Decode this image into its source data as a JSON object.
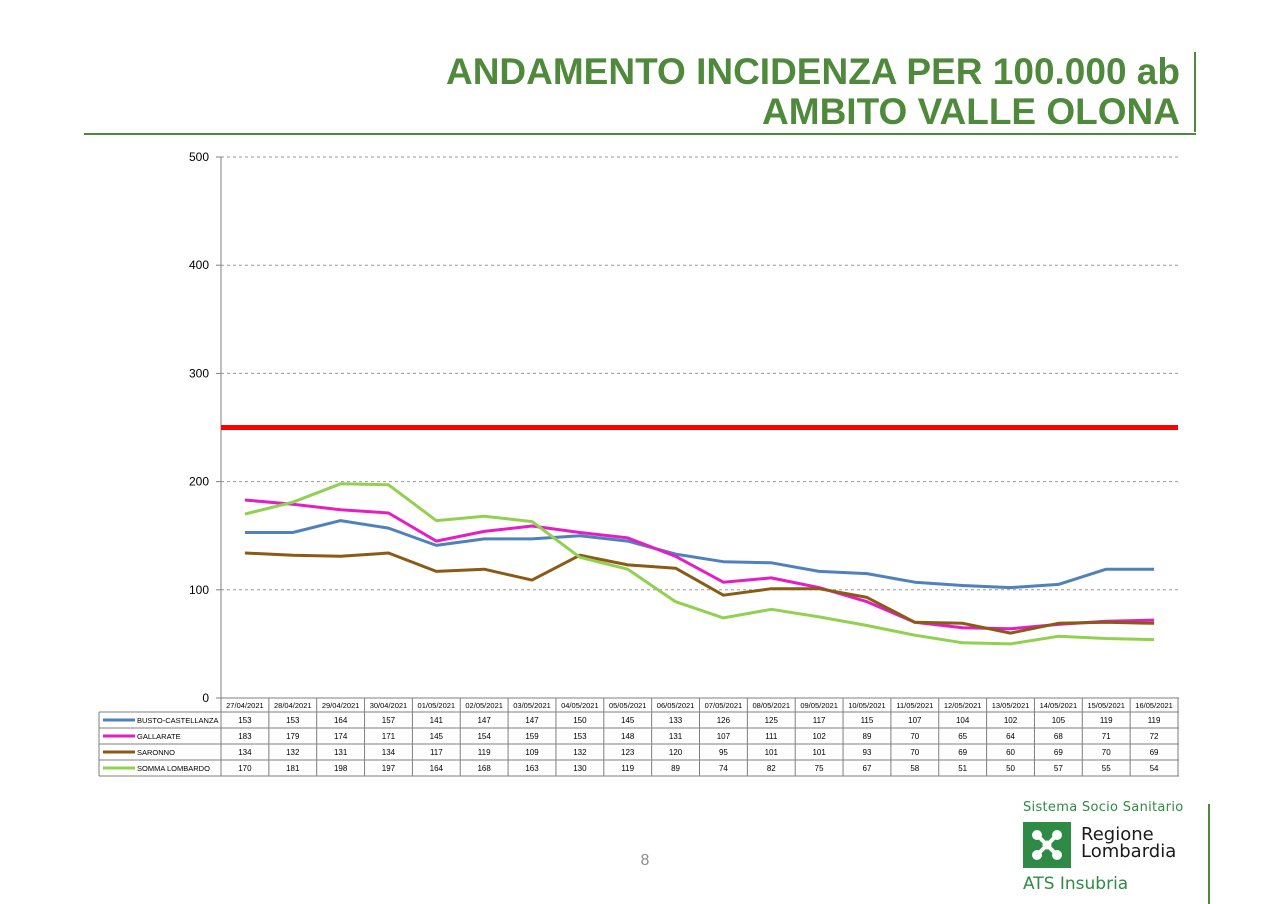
{
  "title": {
    "line1": "ANDAMENTO INCIDENZA PER 100.000 ab",
    "line2": "AMBITO VALLE OLONA"
  },
  "page_number": "8",
  "logo": {
    "system": "Sistema Socio Sanitario",
    "name_line1": "Regione",
    "name_line2": "Lombardia",
    "sub": "ATS Insubria"
  },
  "colors": {
    "title": "#4f8a3c",
    "threshold": "#ff0000",
    "busto": "#4f81bd",
    "gallarate": "#e31fc4",
    "saronno": "#8b5a14",
    "somma": "#92d050"
  },
  "chart_data": {
    "type": "line",
    "title": "ANDAMENTO INCIDENZA PER 100.000 ab AMBITO VALLE OLONA",
    "xlabel": "",
    "ylabel": "",
    "ylim": [
      0,
      500
    ],
    "yticks": [
      0,
      100,
      200,
      300,
      400,
      500
    ],
    "grid": true,
    "threshold": 250,
    "categories": [
      "27/04/2021",
      "28/04/2021",
      "29/04/2021",
      "30/04/2021",
      "01/05/2021",
      "02/05/2021",
      "03/05/2021",
      "04/05/2021",
      "05/05/2021",
      "06/05/2021",
      "07/05/2021",
      "08/05/2021",
      "09/05/2021",
      "10/05/2021",
      "11/05/2021",
      "12/05/2021",
      "13/05/2021",
      "14/05/2021",
      "15/05/2021",
      "16/05/2021"
    ],
    "series": [
      {
        "name": "BUSTO-CASTELLANZA",
        "color": "#4f81bd",
        "values": [
          153,
          153,
          164,
          157,
          141,
          147,
          147,
          150,
          145,
          133,
          126,
          125,
          117,
          115,
          107,
          104,
          102,
          105,
          119,
          119
        ]
      },
      {
        "name": "GALLARATE",
        "color": "#e31fc4",
        "values": [
          183,
          179,
          174,
          171,
          145,
          154,
          159,
          153,
          148,
          131,
          107,
          111,
          102,
          89,
          70,
          65,
          64,
          68,
          71,
          72
        ]
      },
      {
        "name": "SARONNO",
        "color": "#8b5a14",
        "values": [
          134,
          132,
          131,
          134,
          117,
          119,
          109,
          132,
          123,
          120,
          95,
          101,
          101,
          93,
          70,
          69,
          60,
          69,
          70,
          69
        ]
      },
      {
        "name": "SOMMA LOMBARDO",
        "color": "#92d050",
        "values": [
          170,
          181,
          198,
          197,
          164,
          168,
          163,
          130,
          119,
          89,
          74,
          82,
          75,
          67,
          58,
          51,
          50,
          57,
          55,
          54
        ]
      }
    ]
  }
}
